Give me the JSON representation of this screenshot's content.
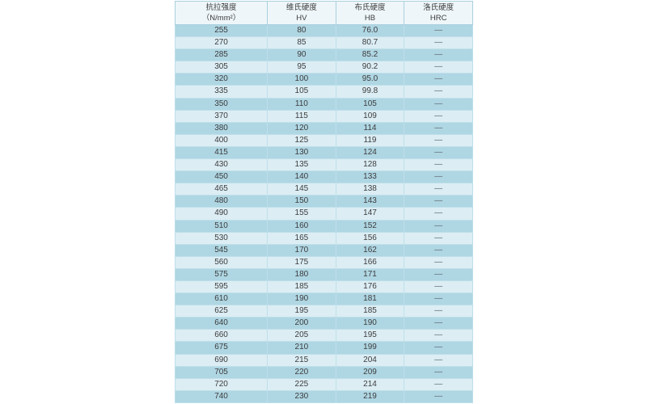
{
  "page": {
    "background": "#ffffff"
  },
  "chart_data": {
    "type": "table",
    "columns": [
      {
        "name": "tensile-strength",
        "line1": "抗拉强度",
        "line2": "（N/mm²）"
      },
      {
        "name": "vickers-hardness",
        "line1": "维氏硬度",
        "line2": "HV"
      },
      {
        "name": "brinell-hardness",
        "line1": "布氏硬度",
        "line2": "HB"
      },
      {
        "name": "rockwell-hardness",
        "line1": "洛氏硬度",
        "line2": "HRC"
      }
    ],
    "rows": [
      [
        "255",
        "80",
        "76.0",
        "—"
      ],
      [
        "270",
        "85",
        "80.7",
        "—"
      ],
      [
        "285",
        "90",
        "85.2",
        "—"
      ],
      [
        "305",
        "95",
        "90.2",
        "—"
      ],
      [
        "320",
        "100",
        "95.0",
        "—"
      ],
      [
        "335",
        "105",
        "99.8",
        "—"
      ],
      [
        "350",
        "110",
        "105",
        "—"
      ],
      [
        "370",
        "115",
        "109",
        "—"
      ],
      [
        "380",
        "120",
        "114",
        "—"
      ],
      [
        "400",
        "125",
        "119",
        "—"
      ],
      [
        "415",
        "130",
        "124",
        "—"
      ],
      [
        "430",
        "135",
        "128",
        "—"
      ],
      [
        "450",
        "140",
        "133",
        "—"
      ],
      [
        "465",
        "145",
        "138",
        "—"
      ],
      [
        "480",
        "150",
        "143",
        "—"
      ],
      [
        "490",
        "155",
        "147",
        "—"
      ],
      [
        "510",
        "160",
        "152",
        "—"
      ],
      [
        "530",
        "165",
        "156",
        "—"
      ],
      [
        "545",
        "170",
        "162",
        "—"
      ],
      [
        "560",
        "175",
        "166",
        "—"
      ],
      [
        "575",
        "180",
        "171",
        "—"
      ],
      [
        "595",
        "185",
        "176",
        "—"
      ],
      [
        "610",
        "190",
        "181",
        "—"
      ],
      [
        "625",
        "195",
        "185",
        "—"
      ],
      [
        "640",
        "200",
        "190",
        "—"
      ],
      [
        "660",
        "205",
        "195",
        "—"
      ],
      [
        "675",
        "210",
        "199",
        "—"
      ],
      [
        "690",
        "215",
        "204",
        "—"
      ],
      [
        "705",
        "220",
        "209",
        "—"
      ],
      [
        "720",
        "225",
        "214",
        "—"
      ],
      [
        "740",
        "230",
        "219",
        "—"
      ]
    ],
    "layout": {
      "grid": true,
      "alternating_rows": true,
      "column_widths_percent": [
        31,
        23,
        23,
        23
      ]
    },
    "colors": {
      "row_dark": "#afd6e3",
      "row_light": "#dcedf4",
      "header_bg": "#eef6f9",
      "header_border": "#a9d0dd",
      "cell_border": "#bfe0ea",
      "text": "#3d3d3d",
      "dash_text": "#5f6b70"
    }
  }
}
